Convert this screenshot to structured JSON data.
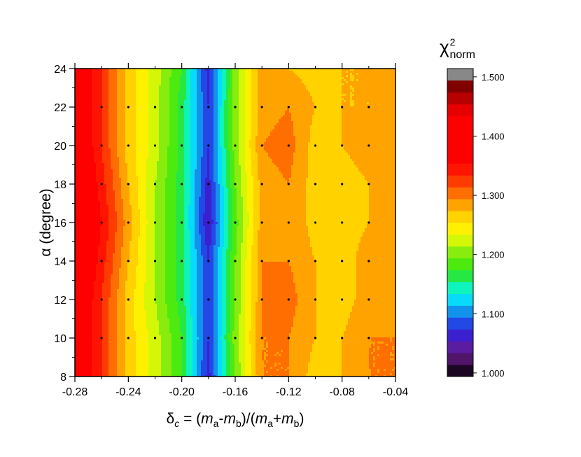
{
  "chart_data": {
    "type": "heatmap",
    "subtype": "filled-contour",
    "title": "",
    "xlabel": {
      "delta": "δ",
      "sub_c": "c",
      "eq": " = (",
      "m1": "m",
      "a1": "a",
      "minus": "-",
      "m2": "m",
      "b1": "b",
      "mid": ")/(",
      "m3": "m",
      "a2": "a",
      "plus": "+",
      "m4": "m",
      "b2": "b",
      "close": ")"
    },
    "ylabel": "α (degree)",
    "colorbar_title": {
      "chi": "χ",
      "sup": "2",
      "sub": "norm"
    },
    "xlim": [
      -0.28,
      -0.04
    ],
    "ylim": [
      8,
      24
    ],
    "x_tick_labels": [
      "-0.28",
      "-0.24",
      "-0.20",
      "-0.16",
      "-0.12",
      "-0.08",
      "-0.04"
    ],
    "y_tick_labels": [
      "8",
      "10",
      "12",
      "14",
      "16",
      "18",
      "20",
      "22",
      "24"
    ],
    "x": [
      -0.28,
      -0.26,
      -0.24,
      -0.22,
      -0.2,
      -0.18,
      -0.16,
      -0.14,
      -0.12,
      -0.1,
      -0.08,
      -0.06,
      -0.04
    ],
    "y": [
      8,
      10,
      12,
      14,
      16,
      18,
      20,
      22,
      24
    ],
    "z": [
      [
        1.4,
        1.34,
        1.27,
        1.23,
        1.18,
        1.07,
        1.2,
        1.3,
        1.3,
        1.27,
        1.28,
        1.3,
        1.3
      ],
      [
        1.4,
        1.34,
        1.27,
        1.23,
        1.18,
        1.08,
        1.21,
        1.3,
        1.3,
        1.28,
        1.28,
        1.3,
        1.3
      ],
      [
        1.4,
        1.34,
        1.27,
        1.22,
        1.17,
        1.08,
        1.2,
        1.3,
        1.31,
        1.28,
        1.27,
        1.29,
        1.3
      ],
      [
        1.41,
        1.35,
        1.28,
        1.22,
        1.17,
        1.08,
        1.2,
        1.3,
        1.3,
        1.28,
        1.27,
        1.29,
        1.3
      ],
      [
        1.42,
        1.36,
        1.29,
        1.22,
        1.17,
        1.06,
        1.19,
        1.29,
        1.3,
        1.27,
        1.27,
        1.28,
        1.3
      ],
      [
        1.41,
        1.35,
        1.28,
        1.22,
        1.17,
        1.07,
        1.2,
        1.29,
        1.3,
        1.27,
        1.27,
        1.28,
        1.3
      ],
      [
        1.4,
        1.34,
        1.27,
        1.23,
        1.17,
        1.08,
        1.21,
        1.3,
        1.31,
        1.27,
        1.28,
        1.29,
        1.3
      ],
      [
        1.4,
        1.34,
        1.27,
        1.23,
        1.17,
        1.08,
        1.21,
        1.29,
        1.3,
        1.28,
        1.28,
        1.28,
        1.3
      ],
      [
        1.4,
        1.34,
        1.27,
        1.23,
        1.18,
        1.07,
        1.21,
        1.29,
        1.28,
        1.27,
        1.28,
        1.28,
        1.3
      ]
    ],
    "colorbar_min": 1.0,
    "colorbar_max": 1.5,
    "colorbar_step": 0.02,
    "colorbar_over_color": "#888888",
    "colorbar_tick_values": [
      1.0,
      1.1,
      1.2,
      1.3,
      1.4,
      1.5
    ],
    "colorbar_tick_labels": [
      "1.000",
      "1.100",
      "1.200",
      "1.300",
      "1.400",
      "1.500"
    ],
    "colormap_stops": [
      [
        1.0,
        "#000000"
      ],
      [
        1.04,
        "#6a1a8a"
      ],
      [
        1.08,
        "#2a22e6"
      ],
      [
        1.1,
        "#1a6ee6"
      ],
      [
        1.14,
        "#00ffff"
      ],
      [
        1.16,
        "#1ee87a"
      ],
      [
        1.18,
        "#2ee80e"
      ],
      [
        1.22,
        "#a6ee0e"
      ],
      [
        1.24,
        "#ffff00"
      ],
      [
        1.27,
        "#ffd200"
      ],
      [
        1.3,
        "#ff8c00"
      ],
      [
        1.32,
        "#ff5000"
      ],
      [
        1.36,
        "#ff0000"
      ],
      [
        1.44,
        "#ff0000"
      ],
      [
        1.48,
        "#a00000"
      ],
      [
        1.5,
        "#600000"
      ]
    ],
    "grid_points": "black dots at interior grid nodes"
  }
}
